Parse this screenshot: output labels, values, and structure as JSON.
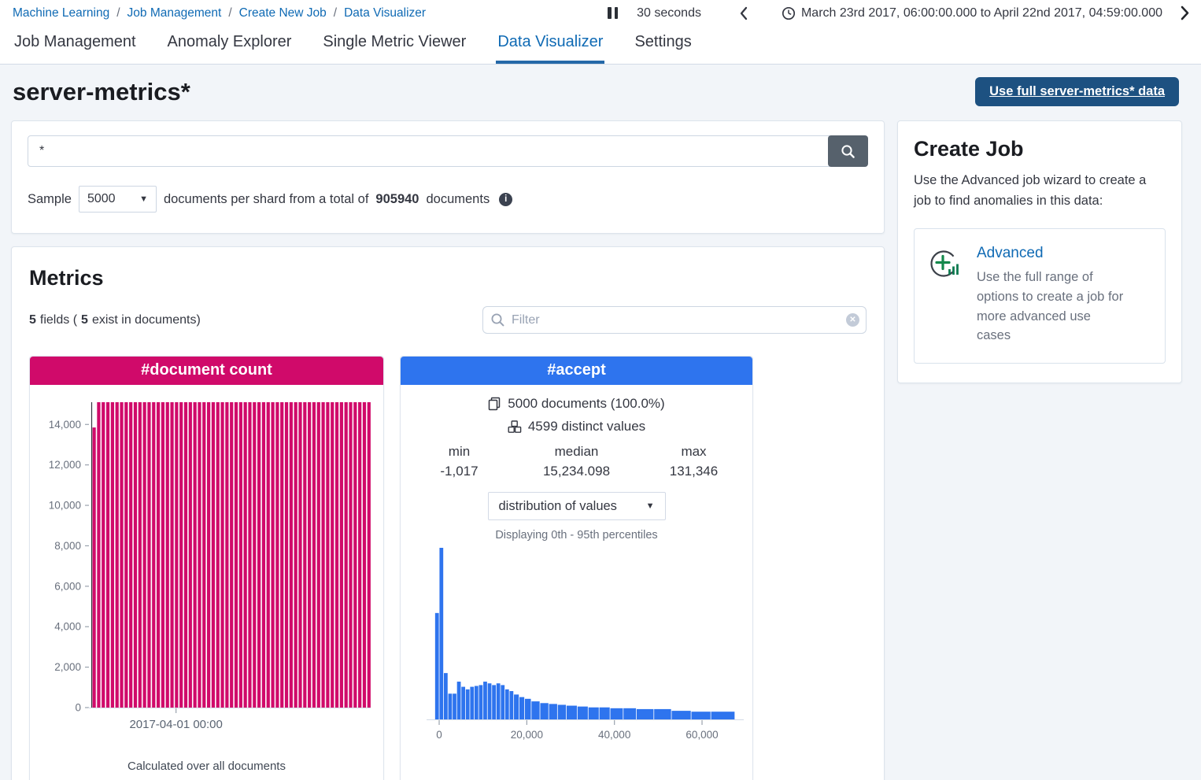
{
  "breadcrumb": {
    "separator": "/",
    "items": [
      "Machine Learning",
      "Job Management",
      "Create New Job",
      "Data Visualizer"
    ]
  },
  "timebar": {
    "refresh_interval": "30 seconds",
    "range": "March 23rd 2017, 06:00:00.000 to April 22nd 2017, 04:59:00.000"
  },
  "tabs": [
    {
      "label": "Job Management",
      "active": false
    },
    {
      "label": "Anomaly Explorer",
      "active": false
    },
    {
      "label": "Single Metric Viewer",
      "active": false
    },
    {
      "label": "Data Visualizer",
      "active": true
    },
    {
      "label": "Settings",
      "active": false
    }
  ],
  "page": {
    "title": "server-metrics*",
    "use_full_data_button": "Use full server-metrics* data"
  },
  "search": {
    "query": "*",
    "sample_label": "Sample",
    "sample_size": "5000",
    "text_before_total": "documents per shard from a total of",
    "total": "905940",
    "text_after_total": "documents"
  },
  "metrics": {
    "heading": "Metrics",
    "fields_count": "5",
    "fields_text": "fields (",
    "exist_count": "5",
    "exist_text": "exist in documents)",
    "filter_placeholder": "Filter"
  },
  "doc_count_card": {
    "title": "#document count",
    "footer": "Calculated over all documents"
  },
  "accept_card": {
    "title": "#accept",
    "documents": "5000 documents (100.0%)",
    "distinct": "4599 distinct values",
    "min_label": "min",
    "median_label": "median",
    "max_label": "max",
    "min": "-1,017",
    "median": "15,234.098",
    "max": "131,346",
    "dropdown": "distribution of values",
    "percentiles": "Displaying 0th - 95th percentiles"
  },
  "create_job": {
    "heading": "Create Job",
    "description": "Use the Advanced job wizard to create a job to find anomalies in this data:",
    "advanced_label": "Advanced",
    "advanced_description": "Use the full range of options to create a job for more advanced use cases"
  },
  "colors": {
    "doc_count_pink": "#d00a6a",
    "accept_blue": "#2e74ee",
    "link_blue": "#0f6ab4",
    "button_navy": "#1d5181",
    "search_button_slate": "#56616c",
    "axis_gray": "#69707d"
  },
  "chart_data": [
    {
      "type": "bar",
      "title": "#document count",
      "subtitle": "Calculated over all documents",
      "y_ticks": [
        0,
        2000,
        4000,
        6000,
        8000,
        10000,
        12000,
        14000
      ],
      "ylim": [
        0,
        15100
      ],
      "x_tick_labels": [
        {
          "label": "2017-04-01 00:00",
          "bar_index": 18
        }
      ],
      "values": [
        13850,
        15100,
        15100,
        15100,
        15100,
        15100,
        15100,
        15100,
        15100,
        15100,
        15100,
        15100,
        15100,
        15100,
        15100,
        15100,
        15100,
        15100,
        15100,
        15100,
        15100,
        15100,
        15100,
        15100,
        15100,
        15100,
        15100,
        15100,
        15100,
        15100,
        15100,
        15100,
        15100,
        15100,
        15100,
        15100,
        15100,
        15100,
        15100,
        15100,
        15100,
        15100,
        15100,
        15100,
        15100,
        15100,
        15100,
        15100,
        15100,
        15100,
        15100,
        15100,
        15100,
        15100,
        15100,
        15100,
        15100,
        15100,
        15100,
        15100,
        15100
      ]
    },
    {
      "type": "histogram",
      "title": "#accept",
      "note": "Displaying 0th - 95th percentiles",
      "x_ticks": [
        0,
        20000,
        40000,
        60000
      ],
      "xlim": [
        -1800,
        68800
      ],
      "bins": [
        {
          "x0": -1000,
          "x1": 0,
          "pct": 62
        },
        {
          "x0": 0,
          "x1": 1000,
          "pct": 100
        },
        {
          "x0": 1000,
          "x1": 2000,
          "pct": 27
        },
        {
          "x0": 2000,
          "x1": 3000,
          "pct": 15
        },
        {
          "x0": 3000,
          "x1": 4000,
          "pct": 15
        },
        {
          "x0": 4000,
          "x1": 5000,
          "pct": 22
        },
        {
          "x0": 5000,
          "x1": 6000,
          "pct": 19
        },
        {
          "x0": 6000,
          "x1": 7000,
          "pct": 17.5
        },
        {
          "x0": 7000,
          "x1": 8000,
          "pct": 19
        },
        {
          "x0": 8000,
          "x1": 9000,
          "pct": 19.5
        },
        {
          "x0": 9000,
          "x1": 10000,
          "pct": 20
        },
        {
          "x0": 10000,
          "x1": 11000,
          "pct": 22
        },
        {
          "x0": 11000,
          "x1": 12000,
          "pct": 21
        },
        {
          "x0": 12000,
          "x1": 13000,
          "pct": 20
        },
        {
          "x0": 13000,
          "x1": 14000,
          "pct": 21
        },
        {
          "x0": 14000,
          "x1": 15000,
          "pct": 20
        },
        {
          "x0": 15000,
          "x1": 16000,
          "pct": 17.5
        },
        {
          "x0": 16000,
          "x1": 17000,
          "pct": 16.5
        },
        {
          "x0": 17000,
          "x1": 18250,
          "pct": 14.5
        },
        {
          "x0": 18250,
          "x1": 19500,
          "pct": 13
        },
        {
          "x0": 19500,
          "x1": 21000,
          "pct": 12
        },
        {
          "x0": 21000,
          "x1": 23000,
          "pct": 10.5
        },
        {
          "x0": 23000,
          "x1": 25000,
          "pct": 9.5
        },
        {
          "x0": 25000,
          "x1": 27000,
          "pct": 9
        },
        {
          "x0": 27000,
          "x1": 29000,
          "pct": 8.5
        },
        {
          "x0": 29000,
          "x1": 31500,
          "pct": 8
        },
        {
          "x0": 31500,
          "x1": 34000,
          "pct": 7.5
        },
        {
          "x0": 34000,
          "x1": 36500,
          "pct": 7
        },
        {
          "x0": 36500,
          "x1": 39000,
          "pct": 7
        },
        {
          "x0": 39000,
          "x1": 42000,
          "pct": 6.5
        },
        {
          "x0": 42000,
          "x1": 45000,
          "pct": 6.5
        },
        {
          "x0": 45000,
          "x1": 49000,
          "pct": 6
        },
        {
          "x0": 49000,
          "x1": 53000,
          "pct": 6
        },
        {
          "x0": 53000,
          "x1": 57500,
          "pct": 5
        },
        {
          "x0": 57500,
          "x1": 62000,
          "pct": 4.5
        },
        {
          "x0": 62000,
          "x1": 67500,
          "pct": 4.5
        }
      ]
    }
  ]
}
